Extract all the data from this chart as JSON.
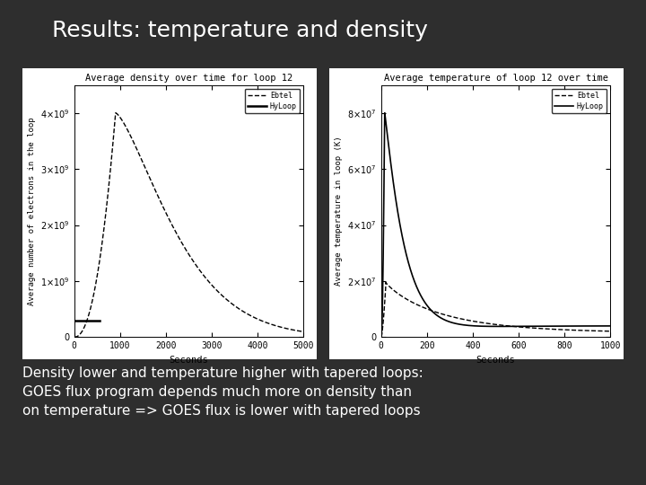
{
  "title": "Results: temperature and density",
  "title_color": "#ffffff",
  "bg_color": "#2e2e2e",
  "panel_bg": "#ffffff",
  "subtitle_text": "Density lower and temperature higher with tapered loops:\nGOES flux program depends much more on density than\non temperature => GOES flux is lower with tapered loops",
  "density_title": "Average density over time for loop 12",
  "density_xlabel": "Seconds",
  "density_ylabel": "Average number of electrons in the loop",
  "density_xlim": [
    0,
    5000
  ],
  "density_ylim": [
    0,
    4500000000.0
  ],
  "density_yticks": [
    0,
    1000000000.0,
    2000000000.0,
    3000000000.0,
    4000000000.0
  ],
  "density_xticks": [
    0,
    1000,
    2000,
    3000,
    4000,
    5000
  ],
  "temp_title": "Average temperature of loop 12 over time",
  "temp_xlabel": "Seconds",
  "temp_ylabel": "Average temperature in loop (K)",
  "temp_xlim": [
    0,
    1000
  ],
  "temp_ylim": [
    0,
    90000000.0
  ],
  "temp_yticks": [
    0,
    20000000.0,
    40000000.0,
    60000000.0,
    80000000.0
  ],
  "temp_xticks": [
    0,
    200,
    400,
    600,
    800,
    1000
  ],
  "legend_labels": [
    "Ebtel",
    "HyLoop"
  ]
}
